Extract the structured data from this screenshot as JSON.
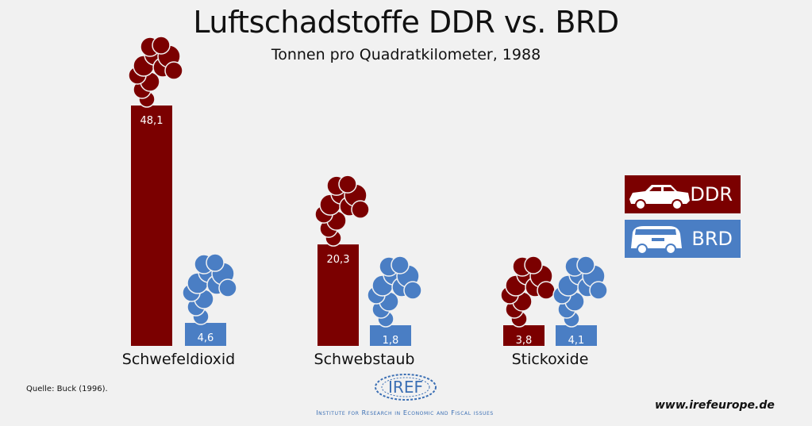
{
  "chart_data": {
    "type": "bar",
    "title": "Luftschadstoffe DDR vs. BRD",
    "subtitle": "Tonnen pro Quadratkilometer, 1988",
    "categories": [
      "Schwefeldioxid",
      "Schwebstaub",
      "Stickoxide"
    ],
    "series": [
      {
        "name": "DDR",
        "color": "#7b0000",
        "values": [
          48.1,
          20.3,
          3.8
        ],
        "labels": [
          "48,1",
          "20,3",
          "3,8"
        ]
      },
      {
        "name": "BRD",
        "color": "#4a7ec4",
        "values": [
          4.6,
          1.8,
          4.1
        ],
        "labels": [
          "4,6",
          "1,8",
          "4,1"
        ]
      }
    ],
    "ylim": [
      0,
      48.1
    ],
    "legend_position": "right",
    "grid": false
  },
  "legend": {
    "ddr_label": "DDR",
    "ddr_icon": "car-icon",
    "brd_label": "BRD",
    "brd_icon": "van-icon"
  },
  "footer": {
    "source": "Quelle: Buck (1996).",
    "url": "www.irefeurope.de",
    "logo_text": "IREF",
    "org_name": "Institute for Research in Economic and Fiscal issues"
  }
}
